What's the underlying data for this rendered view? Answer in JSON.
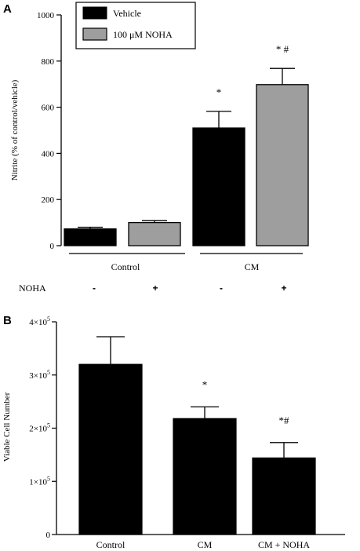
{
  "panels": [
    {
      "letter": "A"
    },
    {
      "letter": "B"
    }
  ],
  "chart_data": [
    {
      "type": "bar",
      "ylabel": "Nitrite (% of control/vehicle)",
      "ylim": [
        0,
        1000
      ],
      "yticks": [
        "0",
        "200",
        "400",
        "600",
        "800",
        "1000"
      ],
      "group_labels": [
        "Control",
        "CM"
      ],
      "condition_row_label": "NOHA",
      "condition_signs": [
        "-",
        "+",
        "-",
        "+"
      ],
      "legend": {
        "position": "top-left",
        "entries": [
          "Vehicle",
          "100 μM NOHA"
        ]
      },
      "series_colors": {
        "Vehicle": "#000000",
        "100 μM NOHA": "#9e9e9e"
      },
      "bars": [
        {
          "group": "Control",
          "series": "Vehicle",
          "value": 73,
          "error": 7,
          "annotation": ""
        },
        {
          "group": "Control",
          "series": "100 μM NOHA",
          "value": 100,
          "error": 9,
          "annotation": ""
        },
        {
          "group": "CM",
          "series": "Vehicle",
          "value": 510,
          "error": 72,
          "annotation": "*"
        },
        {
          "group": "CM",
          "series": "100 μM NOHA",
          "value": 698,
          "error": 70,
          "annotation": "* #"
        }
      ]
    },
    {
      "type": "bar",
      "ylabel": "Viable Cell Number",
      "ylim": [
        0,
        400000
      ],
      "yticks": [
        {
          "base": "0",
          "exp": ""
        },
        {
          "base": "1×10",
          "exp": "5"
        },
        {
          "base": "2×10",
          "exp": "5"
        },
        {
          "base": "3×10",
          "exp": "5"
        },
        {
          "base": "4×10",
          "exp": "5"
        }
      ],
      "categories": [
        "Control",
        "CM",
        "CM + NOHA"
      ],
      "values": [
        320000,
        218000,
        144000
      ],
      "errors": [
        52000,
        22000,
        29000
      ],
      "annotations": [
        "",
        "*",
        "*#"
      ],
      "color": "#000000"
    }
  ]
}
